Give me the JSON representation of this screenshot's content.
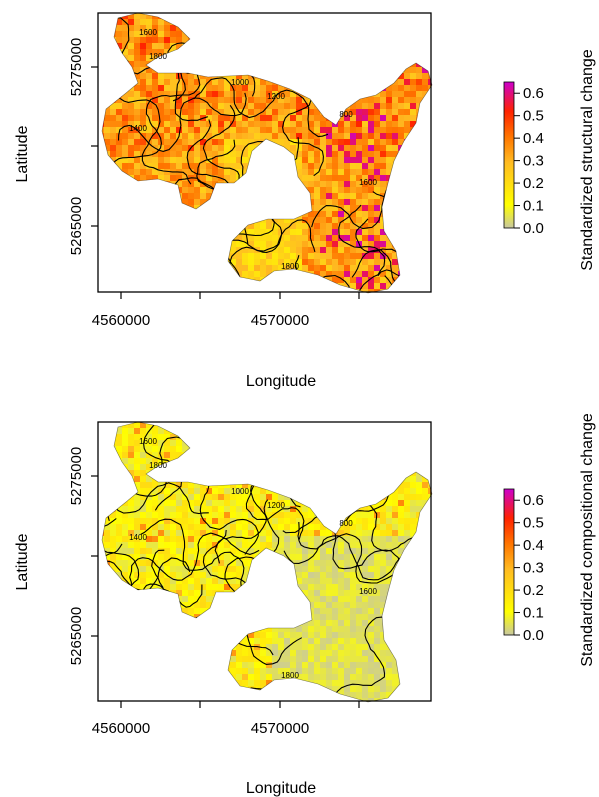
{
  "chart_data": [
    {
      "type": "heatmap",
      "xlabel": "Longitude",
      "ylabel": "Latitude",
      "x_ticks": [
        4560000,
        4570000
      ],
      "y_ticks": [
        5265000,
        5275000
      ],
      "xlim": [
        4559000,
        4577500
      ],
      "ylim": [
        5261500,
        5278500
      ],
      "colorbar": {
        "label": "Standardized structural change",
        "ticks": [
          "0.0",
          "0.1",
          "0.2",
          "0.3",
          "0.4",
          "0.5",
          "0.6"
        ],
        "range": [
          0,
          0.65
        ],
        "colors": [
          "#c8c8a0",
          "#ffff00",
          "#ffbb22",
          "#ff7700",
          "#ff2200",
          "#cc00cc"
        ]
      },
      "contour_labels": [
        "1600",
        "1800",
        "1000",
        "1200",
        "1400",
        "800",
        "1600",
        "1800"
      ],
      "value_level": "high"
    },
    {
      "type": "heatmap",
      "xlabel": "Longitude",
      "ylabel": "Latitude",
      "x_ticks": [
        4560000,
        4570000
      ],
      "y_ticks": [
        5265000,
        5275000
      ],
      "xlim": [
        4559000,
        4577500
      ],
      "ylim": [
        5261500,
        5278500
      ],
      "colorbar": {
        "label": "Standardized compositional change",
        "ticks": [
          "0.0",
          "0.1",
          "0.2",
          "0.3",
          "0.4",
          "0.5",
          "0.6"
        ],
        "range": [
          0,
          0.65
        ],
        "colors": [
          "#c8c8a0",
          "#ffff00",
          "#ffbb22",
          "#ff7700",
          "#ff2200",
          "#cc00cc"
        ]
      },
      "contour_labels": [
        "1600",
        "1800",
        "1000",
        "1200",
        "1400",
        "800",
        "1600",
        "1800"
      ],
      "value_level": "low"
    }
  ]
}
